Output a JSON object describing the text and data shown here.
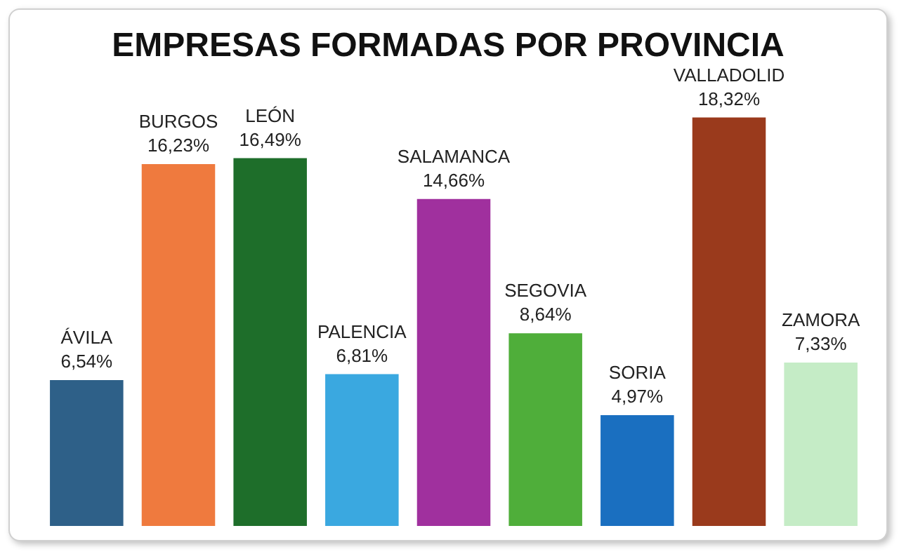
{
  "chart_data": {
    "type": "bar",
    "title": "EMPRESAS FORMADAS POR PROVINCIA",
    "categories": [
      "ÁVILA",
      "BURGOS",
      "LEÓN",
      "PALENCIA",
      "SALAMANCA",
      "SEGOVIA",
      "SORIA",
      "VALLADOLID",
      "ZAMORA"
    ],
    "values": [
      6.54,
      16.23,
      16.49,
      6.81,
      14.66,
      8.64,
      4.97,
      18.32,
      7.33
    ],
    "value_labels": [
      "6,54%",
      "16,23%",
      "16,49%",
      "6,81%",
      "14,66%",
      "8,64%",
      "4,97%",
      "18,32%",
      "7,33%"
    ],
    "colors": [
      "#2e6088",
      "#ef7a3e",
      "#1e6e2a",
      "#3aa8e0",
      "#a0309e",
      "#4fae3a",
      "#1a6fc0",
      "#9a3a1c",
      "#c5ecc6"
    ],
    "tick_labels": false,
    "legend": false
  }
}
